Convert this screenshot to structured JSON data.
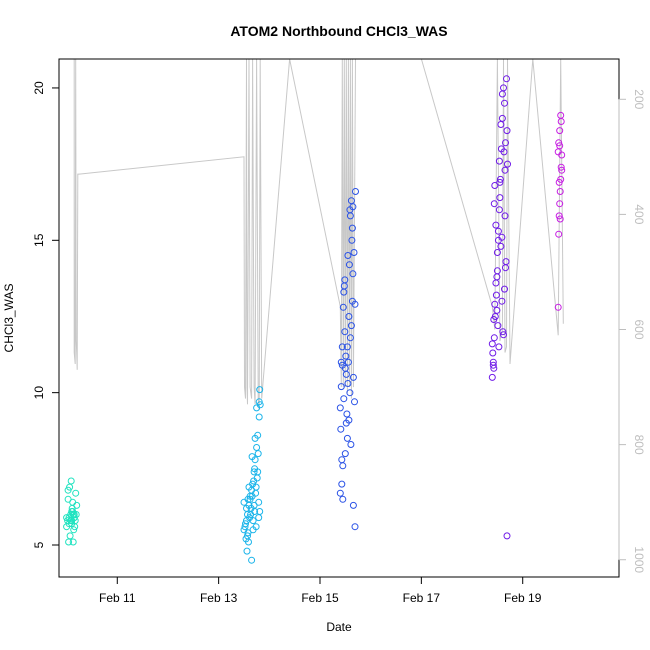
{
  "chart_data": {
    "type": "scatter",
    "title": "ATOM2 Northbound CHCl3_WAS",
    "xlabel": "Date",
    "ylabel": "CHCl3_WAS",
    "x_ticks": [
      "Feb 11",
      "Feb 13",
      "Feb 15",
      "Feb 17",
      "Feb 19"
    ],
    "x_tick_days": [
      11,
      13,
      15,
      17,
      19
    ],
    "xlim_days": [
      9.85,
      20.9
    ],
    "y_ticks": [
      5,
      10,
      15,
      20
    ],
    "ylim": [
      3.95,
      20.95
    ],
    "y2_ticks": [
      200,
      400,
      600,
      800,
      1000
    ],
    "y2lim": [
      1030,
      130
    ],
    "grid": false,
    "legend": "none",
    "colors": {
      "axis": "#000000",
      "secondary_axis": "#bebebe",
      "altitude_trace": "#c8c8c8"
    },
    "altitude_trace": {
      "x": [
        10.15,
        10.15,
        10.16,
        10.17,
        10.17,
        10.18,
        10.19,
        10.2,
        10.21,
        10.22,
        10.25,
        13.5,
        13.51,
        13.53,
        13.55,
        13.56,
        13.57,
        13.6,
        13.62,
        13.65,
        13.67,
        13.7,
        13.72,
        13.75,
        13.78,
        13.8,
        13.82,
        13.85,
        14.4,
        15.4,
        15.42,
        15.44,
        15.46,
        15.48,
        15.5,
        15.52,
        15.54,
        15.56,
        15.58,
        15.6,
        15.62,
        15.64,
        15.66,
        15.7,
        17.0,
        18.4,
        18.45,
        18.5,
        18.55,
        18.6,
        18.62,
        18.65,
        18.68,
        18.7,
        18.75,
        19.2,
        19.7,
        19.75,
        19.8
      ],
      "y": [
        130,
        640,
        650,
        660,
        550,
        130,
        620,
        640,
        670,
        330,
        330,
        300,
        700,
        720,
        100,
        700,
        730,
        100,
        700,
        720,
        100,
        700,
        730,
        100,
        720,
        740,
        100,
        720,
        100,
        560,
        700,
        100,
        700,
        120,
        700,
        100,
        710,
        100,
        700,
        110,
        720,
        120,
        700,
        100,
        100,
        560,
        600,
        110,
        620,
        600,
        100,
        640,
        630,
        100,
        660,
        100,
        610,
        100,
        590
      ]
    },
    "series": [
      {
        "color": "#20e3c0",
        "x": [
          10.0,
          10.02,
          10.05,
          10.08,
          10.1,
          10.12,
          10.14,
          10.15,
          10.17,
          10.2,
          10.03,
          10.06,
          10.09,
          10.11,
          10.13,
          10.16,
          10.18,
          10.04,
          10.07,
          10.1,
          10.12,
          10.15,
          10.0,
          10.05,
          10.1,
          10.15,
          10.08,
          10.03,
          10.13,
          10.19
        ],
        "y": [
          5.6,
          5.8,
          5.9,
          6.0,
          5.7,
          6.1,
          5.5,
          5.9,
          5.8,
          6.3,
          6.5,
          6.9,
          7.1,
          6.2,
          6.0,
          5.6,
          6.7,
          5.1,
          5.3,
          5.8,
          6.4,
          5.9,
          5.9,
          5.7,
          6.1,
          6.0,
          5.8,
          6.8,
          5.1,
          6.0
        ]
      },
      {
        "color": "#1ab4ea",
        "x": [
          13.5,
          13.52,
          13.55,
          13.57,
          13.6,
          13.62,
          13.65,
          13.67,
          13.7,
          13.72,
          13.75,
          13.77,
          13.8,
          13.82,
          13.54,
          13.58,
          13.61,
          13.64,
          13.66,
          13.69,
          13.71,
          13.74,
          13.76,
          13.79,
          13.81,
          13.53,
          13.56,
          13.59,
          13.63,
          13.68,
          13.73,
          13.78,
          13.8,
          13.75,
          13.72,
          13.7,
          13.68,
          13.6,
          13.55,
          13.5,
          13.57,
          13.62,
          13.66,
          13.71,
          13.74,
          13.77,
          13.79,
          13.81,
          13.65,
          13.58
        ],
        "y": [
          5.5,
          5.6,
          5.8,
          6.0,
          6.3,
          6.5,
          6.8,
          7.0,
          7.4,
          7.8,
          8.2,
          8.6,
          9.2,
          9.6,
          5.2,
          5.4,
          5.9,
          6.2,
          6.6,
          7.1,
          7.5,
          6.9,
          7.2,
          6.4,
          6.1,
          5.7,
          4.8,
          5.1,
          6.0,
          5.5,
          6.7,
          8.0,
          9.7,
          9.5,
          8.5,
          6.3,
          5.8,
          6.9,
          6.2,
          6.4,
          5.3,
          6.6,
          7.9,
          6.1,
          5.6,
          7.4,
          5.9,
          10.1,
          4.5,
          6.5
        ]
      },
      {
        "color": "#2a52e6",
        "x": [
          15.4,
          15.42,
          15.44,
          15.46,
          15.48,
          15.5,
          15.52,
          15.54,
          15.56,
          15.58,
          15.6,
          15.62,
          15.64,
          15.66,
          15.7,
          15.41,
          15.43,
          15.45,
          15.47,
          15.49,
          15.51,
          15.53,
          15.55,
          15.57,
          15.59,
          15.61,
          15.63,
          15.65,
          15.67,
          15.69,
          15.4,
          15.45,
          15.5,
          15.55,
          15.6,
          15.65,
          15.68,
          15.42,
          15.47,
          15.52,
          15.57,
          15.62,
          15.66,
          15.44,
          15.49,
          15.54,
          15.59,
          15.64,
          15.69,
          15.43
        ],
        "y": [
          9.5,
          10.2,
          11.5,
          12.8,
          13.5,
          10.8,
          9.0,
          8.5,
          11.0,
          14.2,
          15.8,
          16.3,
          13.0,
          10.5,
          16.6,
          8.8,
          7.0,
          6.5,
          9.8,
          12.0,
          11.2,
          9.3,
          14.5,
          12.5,
          10.0,
          8.3,
          15.0,
          16.1,
          14.6,
          12.9,
          6.7,
          7.6,
          8.0,
          10.3,
          11.8,
          13.9,
          9.7,
          11.0,
          13.3,
          10.6,
          9.1,
          12.2,
          6.3,
          10.9,
          13.7,
          11.5,
          16.0,
          15.4,
          5.6,
          7.8
        ]
      },
      {
        "color": "#6f1ae8",
        "x": [
          18.4,
          18.42,
          18.44,
          18.46,
          18.48,
          18.5,
          18.52,
          18.54,
          18.56,
          18.58,
          18.6,
          18.62,
          18.64,
          18.66,
          18.7,
          18.41,
          18.43,
          18.45,
          18.47,
          18.49,
          18.51,
          18.53,
          18.55,
          18.57,
          18.59,
          18.61,
          18.63,
          18.65,
          18.67,
          18.69,
          18.4,
          18.45,
          18.5,
          18.55,
          18.6,
          18.65,
          18.68,
          18.42,
          18.47,
          18.52,
          18.57,
          18.62,
          18.66,
          18.44,
          18.49,
          18.54,
          18.59,
          18.64,
          18.69,
          18.43
        ],
        "y": [
          10.5,
          11.0,
          11.8,
          12.5,
          13.2,
          14.0,
          15.0,
          16.0,
          17.0,
          18.0,
          19.0,
          20.0,
          19.5,
          18.2,
          17.5,
          11.3,
          10.8,
          16.8,
          15.5,
          13.8,
          12.2,
          11.5,
          16.4,
          14.8,
          13.0,
          12.0,
          17.9,
          15.8,
          14.3,
          18.6,
          11.6,
          12.9,
          14.6,
          16.9,
          19.8,
          17.3,
          20.3,
          10.9,
          13.6,
          15.3,
          18.8,
          11.9,
          14.1,
          16.2,
          12.7,
          17.6,
          15.1,
          13.4,
          5.3,
          12.4
        ]
      },
      {
        "color": "#c71ee3",
        "x": [
          19.7,
          19.71,
          19.72,
          19.73,
          19.74,
          19.75,
          19.76,
          19.77,
          19.71,
          19.73,
          19.75,
          19.72,
          19.74,
          19.76,
          19.7,
          19.77,
          19.73
        ],
        "y": [
          12.8,
          15.2,
          15.8,
          16.2,
          16.6,
          17.0,
          17.4,
          17.8,
          18.2,
          18.6,
          19.1,
          16.9,
          15.7,
          18.9,
          17.9,
          17.3,
          18.1
        ]
      }
    ]
  }
}
